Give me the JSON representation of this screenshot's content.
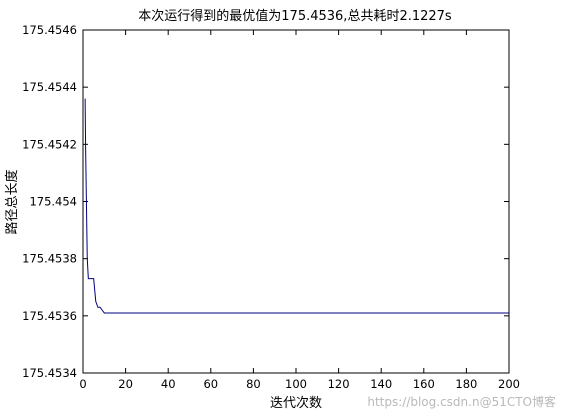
{
  "chart_data": {
    "type": "line",
    "title": "本次运行得到的最优值为175.4536,总共耗时2.1227s",
    "xlabel": "迭代次数",
    "ylabel": "路径总长度",
    "xlim": [
      0,
      200
    ],
    "ylim": [
      175.4534,
      175.4546
    ],
    "x_ticks": [
      "0",
      "20",
      "40",
      "60",
      "80",
      "100",
      "120",
      "140",
      "160",
      "180",
      "200"
    ],
    "y_ticks": [
      "175.4534",
      "175.4536",
      "175.4538",
      "175.454",
      "175.4542",
      "175.4544",
      "175.4546"
    ],
    "grid": false,
    "series": [
      {
        "color": "#000080",
        "x": [
          1,
          1.2,
          1.4,
          1.6,
          1.8,
          2,
          2.5,
          3,
          4,
          5,
          6,
          7,
          8,
          9,
          10,
          15,
          20,
          50,
          100,
          150,
          200
        ],
        "y": [
          175.45436,
          175.4542,
          175.4541,
          175.454,
          175.4539,
          175.4538,
          175.45373,
          175.45373,
          175.45373,
          175.45373,
          175.45365,
          175.45363,
          175.45363,
          175.45362,
          175.45361,
          175.45361,
          175.45361,
          175.45361,
          175.45361,
          175.45361,
          175.45361
        ]
      }
    ]
  },
  "watermark": "https://blog.csdn.n@51CTO博客"
}
